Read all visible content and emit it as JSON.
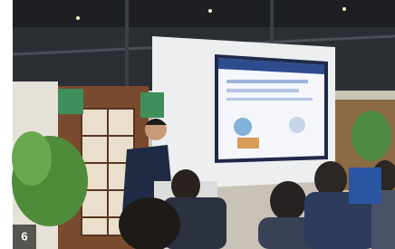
{
  "photo_label": "6"
}
